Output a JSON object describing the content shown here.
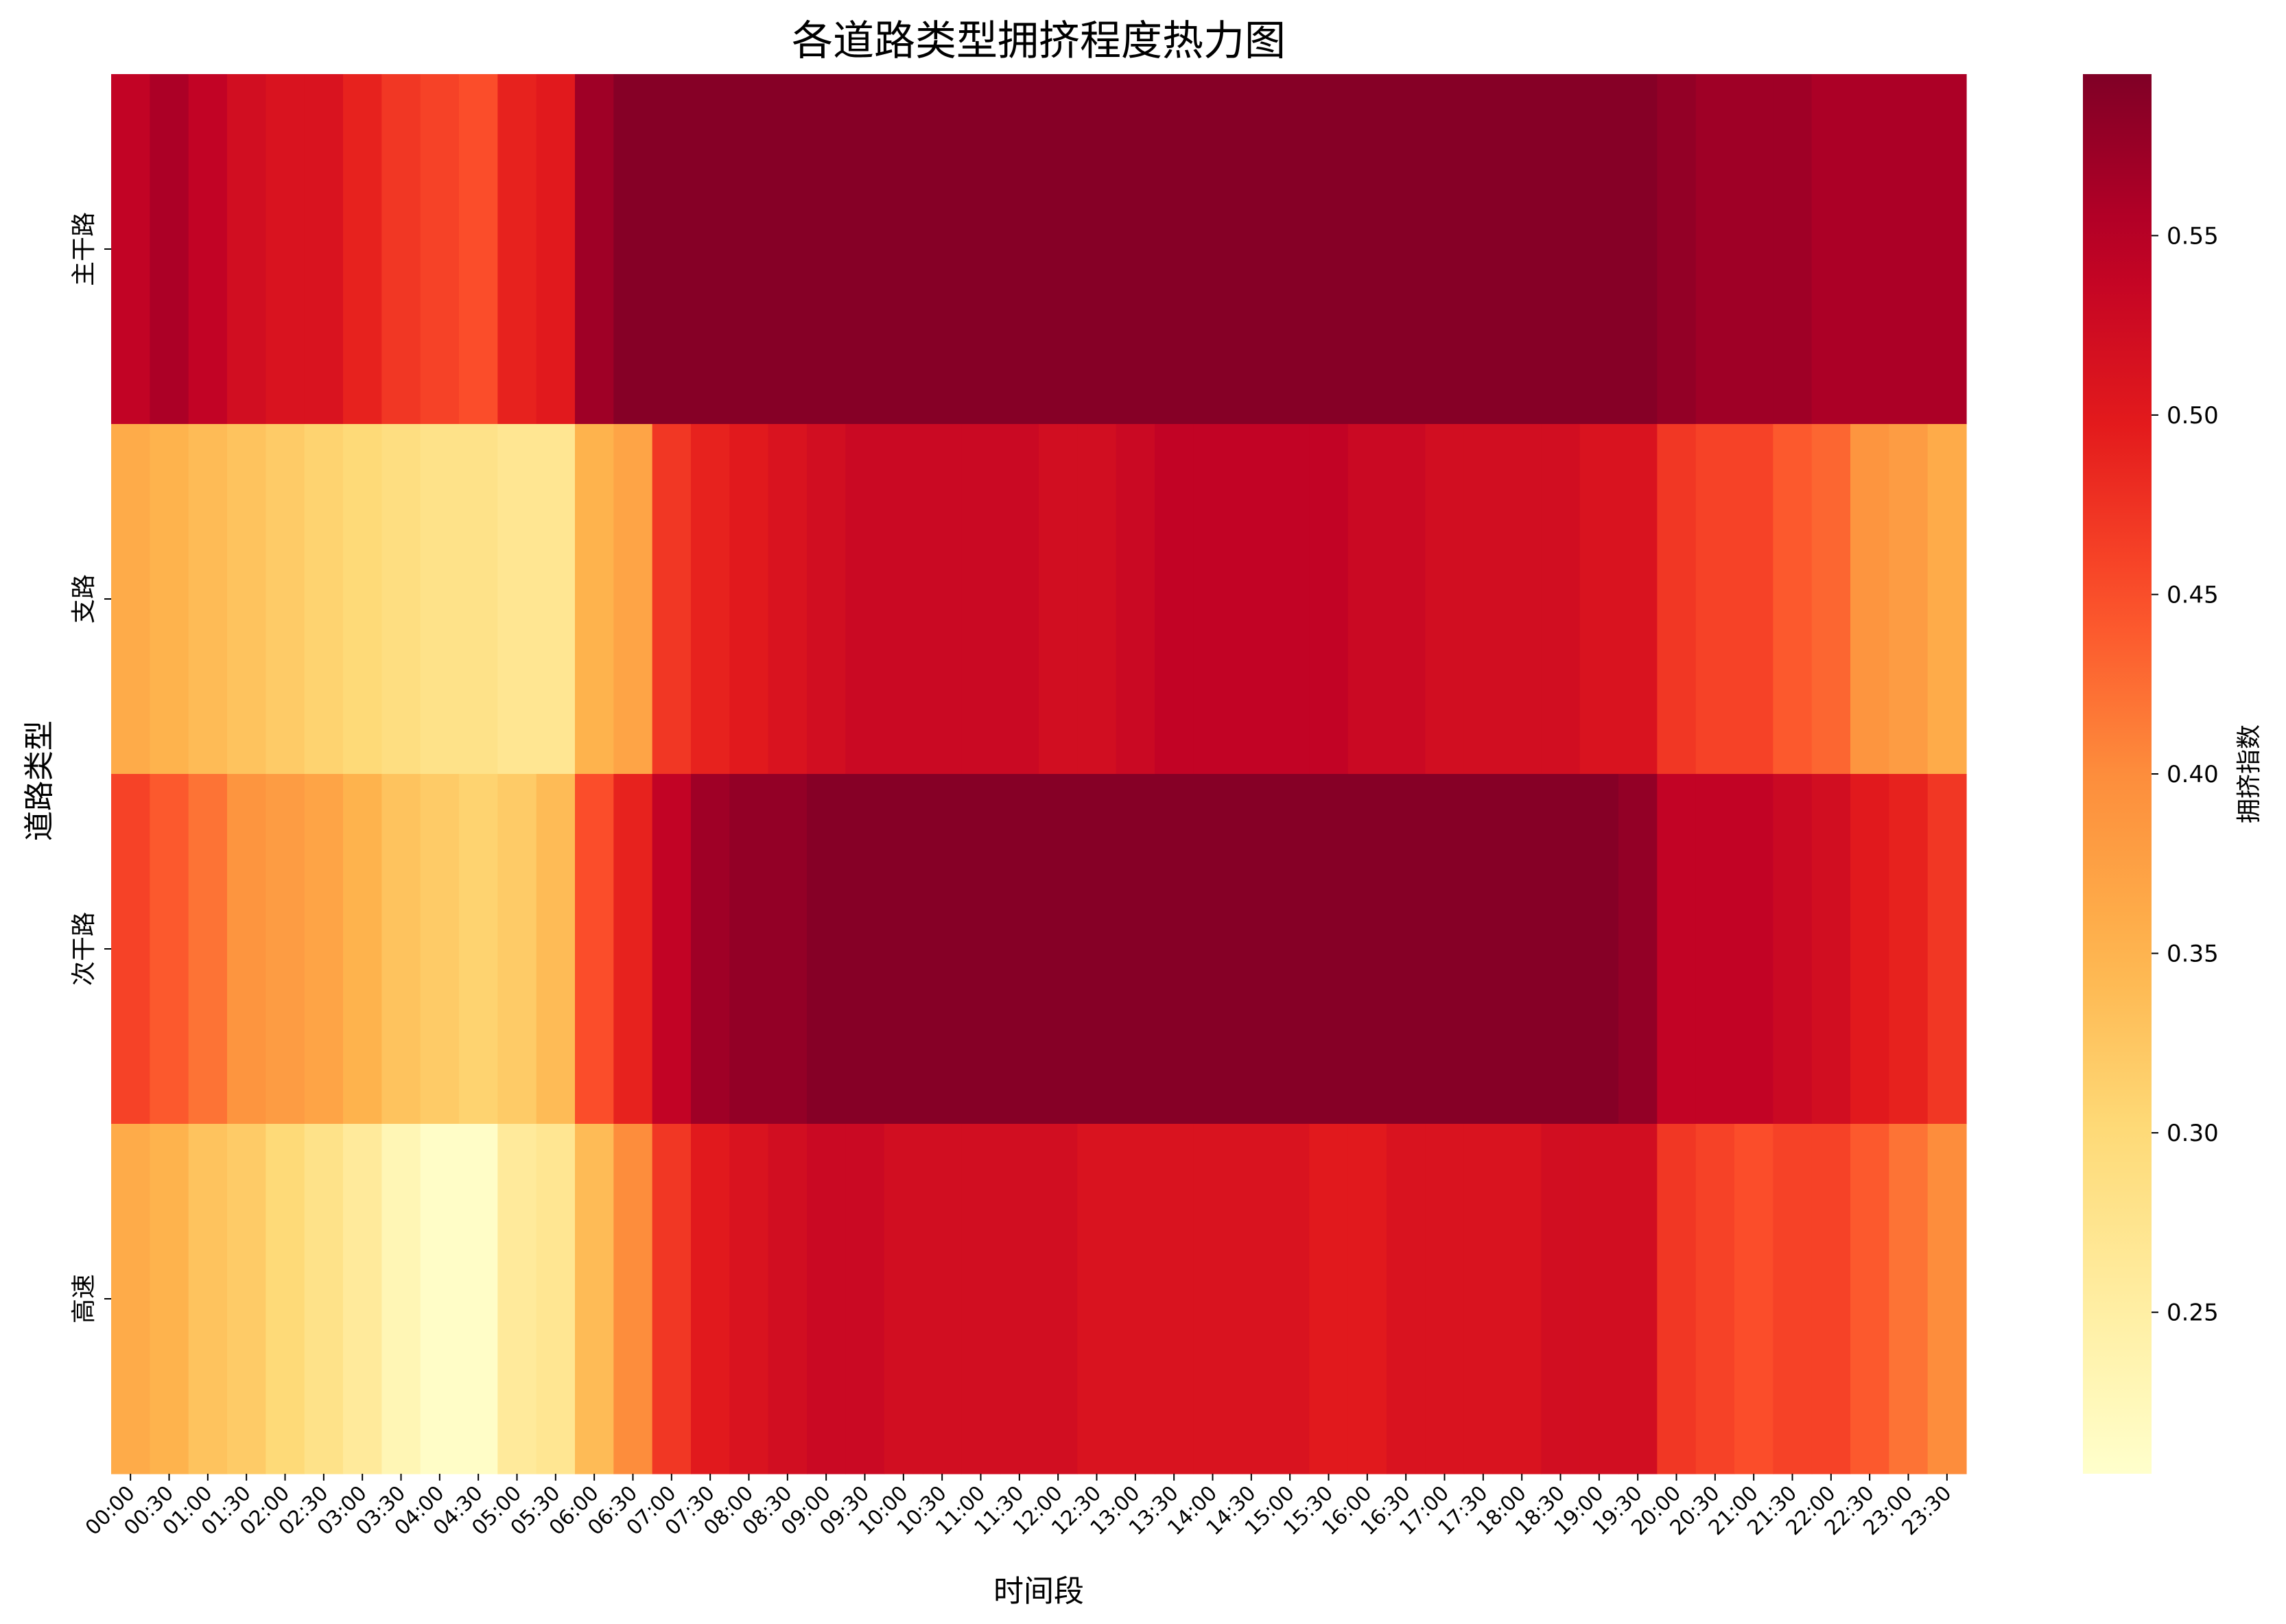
{
  "chart_data": {
    "type": "heatmap",
    "title": "各道路类型拥挤程度热力图",
    "xlabel": "时间段",
    "ylabel": "道路类型",
    "colorbar_label": "拥挤指数",
    "colorbar_ticks": [
      "0.25",
      "0.30",
      "0.35",
      "0.40",
      "0.45",
      "0.50",
      "0.55"
    ],
    "colorbar_tick_values": [
      0.25,
      0.3,
      0.35,
      0.4,
      0.45,
      0.5,
      0.55
    ],
    "colormap": "YlOrRd",
    "vmin": 0.205,
    "vmax": 0.595,
    "x": [
      "00:00",
      "00:30",
      "01:00",
      "01:30",
      "02:00",
      "02:30",
      "03:00",
      "03:30",
      "04:00",
      "04:30",
      "05:00",
      "05:30",
      "06:00",
      "06:30",
      "07:00",
      "07:30",
      "08:00",
      "08:30",
      "09:00",
      "09:30",
      "10:00",
      "10:30",
      "11:00",
      "11:30",
      "12:00",
      "12:30",
      "13:00",
      "13:30",
      "14:00",
      "14:30",
      "15:00",
      "15:30",
      "16:00",
      "16:30",
      "17:00",
      "17:30",
      "18:00",
      "18:30",
      "19:00",
      "19:30",
      "20:00",
      "20:30",
      "21:00",
      "21:30",
      "22:00",
      "22:30",
      "23:00",
      "23:30"
    ],
    "y": [
      "主干路",
      "支路",
      "次干路",
      "高速"
    ],
    "values": [
      [
        0.54,
        0.56,
        0.54,
        0.52,
        0.51,
        0.51,
        0.49,
        0.47,
        0.46,
        0.45,
        0.49,
        0.5,
        0.57,
        0.59,
        0.59,
        0.59,
        0.59,
        0.59,
        0.59,
        0.59,
        0.59,
        0.59,
        0.59,
        0.59,
        0.59,
        0.59,
        0.59,
        0.59,
        0.59,
        0.59,
        0.59,
        0.59,
        0.59,
        0.59,
        0.59,
        0.59,
        0.59,
        0.59,
        0.59,
        0.59,
        0.58,
        0.57,
        0.57,
        0.57,
        0.56,
        0.56,
        0.56,
        0.56
      ],
      [
        0.36,
        0.35,
        0.34,
        0.33,
        0.32,
        0.31,
        0.3,
        0.29,
        0.28,
        0.28,
        0.27,
        0.27,
        0.35,
        0.37,
        0.47,
        0.49,
        0.5,
        0.51,
        0.52,
        0.53,
        0.53,
        0.53,
        0.53,
        0.53,
        0.52,
        0.52,
        0.53,
        0.54,
        0.54,
        0.54,
        0.54,
        0.54,
        0.53,
        0.53,
        0.52,
        0.52,
        0.52,
        0.52,
        0.51,
        0.51,
        0.47,
        0.46,
        0.46,
        0.44,
        0.43,
        0.39,
        0.38,
        0.36
      ],
      [
        0.46,
        0.44,
        0.42,
        0.39,
        0.38,
        0.37,
        0.35,
        0.33,
        0.32,
        0.31,
        0.32,
        0.34,
        0.45,
        0.49,
        0.54,
        0.57,
        0.58,
        0.58,
        0.59,
        0.59,
        0.59,
        0.59,
        0.59,
        0.59,
        0.59,
        0.59,
        0.59,
        0.59,
        0.59,
        0.59,
        0.59,
        0.59,
        0.59,
        0.59,
        0.59,
        0.59,
        0.59,
        0.59,
        0.59,
        0.58,
        0.54,
        0.54,
        0.54,
        0.53,
        0.52,
        0.5,
        0.49,
        0.47
      ],
      [
        0.36,
        0.35,
        0.33,
        0.32,
        0.3,
        0.28,
        0.26,
        0.23,
        0.21,
        0.21,
        0.26,
        0.27,
        0.34,
        0.4,
        0.47,
        0.5,
        0.51,
        0.52,
        0.53,
        0.53,
        0.52,
        0.52,
        0.52,
        0.52,
        0.52,
        0.51,
        0.51,
        0.51,
        0.51,
        0.51,
        0.51,
        0.5,
        0.5,
        0.51,
        0.51,
        0.51,
        0.51,
        0.52,
        0.52,
        0.52,
        0.47,
        0.46,
        0.45,
        0.46,
        0.46,
        0.44,
        0.42,
        0.4
      ]
    ]
  }
}
